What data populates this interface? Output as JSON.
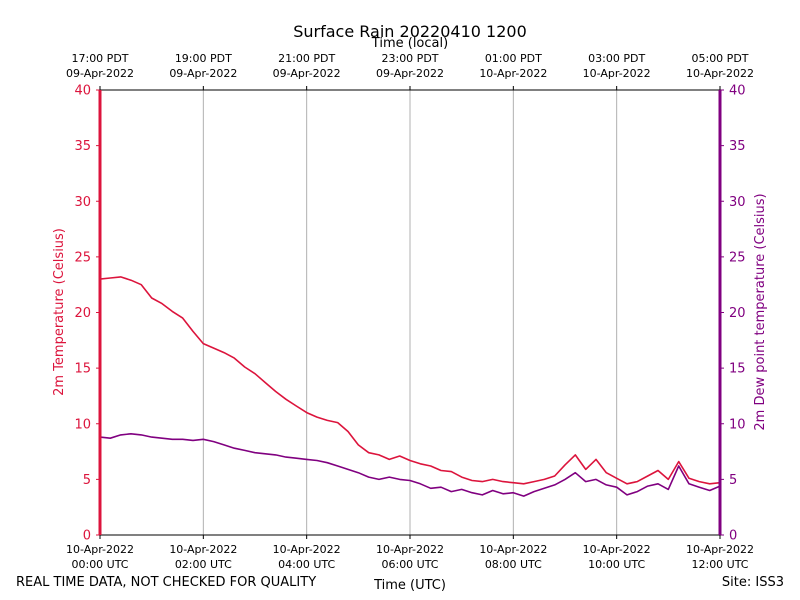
{
  "chart_data": {
    "type": "line",
    "title": "Surface Rain 20220410 1200",
    "top_axis_title": "Time (local)",
    "xlabel": "Time (UTC)",
    "ylabel_left": "2m Temperature (Celsius)",
    "ylabel_right": "2m Dew point temperature (Celsius)",
    "xlim_hours": [
      0,
      12
    ],
    "ylim": [
      0,
      40
    ],
    "yticks": [
      0,
      5,
      10,
      15,
      20,
      25,
      30,
      35,
      40
    ],
    "grid": "vertical",
    "bottom_ticks": [
      {
        "hour": 0,
        "date": "10-Apr-2022",
        "time": "00:00 UTC"
      },
      {
        "hour": 2,
        "date": "10-Apr-2022",
        "time": "02:00 UTC"
      },
      {
        "hour": 4,
        "date": "10-Apr-2022",
        "time": "04:00 UTC"
      },
      {
        "hour": 6,
        "date": "10-Apr-2022",
        "time": "06:00 UTC"
      },
      {
        "hour": 8,
        "date": "10-Apr-2022",
        "time": "08:00 UTC"
      },
      {
        "hour": 10,
        "date": "10-Apr-2022",
        "time": "10:00 UTC"
      },
      {
        "hour": 12,
        "date": "10-Apr-2022",
        "time": "12:00 UTC"
      }
    ],
    "top_ticks": [
      {
        "hour": 0,
        "time": "17:00 PDT",
        "date": "09-Apr-2022"
      },
      {
        "hour": 2,
        "time": "19:00 PDT",
        "date": "09-Apr-2022"
      },
      {
        "hour": 4,
        "time": "21:00 PDT",
        "date": "09-Apr-2022"
      },
      {
        "hour": 6,
        "time": "23:00 PDT",
        "date": "09-Apr-2022"
      },
      {
        "hour": 8,
        "time": "01:00 PDT",
        "date": "10-Apr-2022"
      },
      {
        "hour": 10,
        "time": "03:00 PDT",
        "date": "10-Apr-2022"
      },
      {
        "hour": 12,
        "time": "05:00 PDT",
        "date": "10-Apr-2022"
      }
    ],
    "series": [
      {
        "name": "2m Temperature",
        "axis": "left",
        "color": "#dc143c",
        "x": [
          0,
          0.2,
          0.4,
          0.6,
          0.8,
          1.0,
          1.2,
          1.4,
          1.6,
          1.8,
          2.0,
          2.2,
          2.4,
          2.6,
          2.8,
          3.0,
          3.2,
          3.4,
          3.6,
          3.8,
          4.0,
          4.2,
          4.4,
          4.6,
          4.8,
          5.0,
          5.2,
          5.4,
          5.6,
          5.8,
          6.0,
          6.2,
          6.4,
          6.6,
          6.8,
          7.0,
          7.2,
          7.4,
          7.6,
          7.8,
          8.0,
          8.2,
          8.4,
          8.6,
          8.8,
          9.0,
          9.2,
          9.4,
          9.6,
          9.8,
          10.0,
          10.2,
          10.4,
          10.6,
          10.8,
          11.0,
          11.2,
          11.4,
          11.6,
          11.8,
          12.0
        ],
        "values": [
          23.0,
          23.1,
          23.2,
          22.9,
          22.5,
          21.3,
          20.8,
          20.1,
          19.5,
          18.3,
          17.2,
          16.8,
          16.4,
          15.9,
          15.1,
          14.5,
          13.7,
          12.9,
          12.2,
          11.6,
          11.0,
          10.6,
          10.3,
          10.1,
          9.3,
          8.1,
          7.4,
          7.2,
          6.8,
          7.1,
          6.7,
          6.4,
          6.2,
          5.8,
          5.7,
          5.2,
          4.9,
          4.8,
          5.0,
          4.8,
          4.7,
          4.6,
          4.8,
          5.0,
          5.3,
          6.3,
          7.2,
          5.9,
          6.8,
          5.6,
          5.1,
          4.6,
          4.8,
          5.3,
          5.8,
          5.0,
          6.6,
          5.1,
          4.8,
          4.6,
          4.7
        ]
      },
      {
        "name": "2m Dew point temperature",
        "axis": "right",
        "color": "#800080",
        "x": [
          0,
          0.2,
          0.4,
          0.6,
          0.8,
          1.0,
          1.2,
          1.4,
          1.6,
          1.8,
          2.0,
          2.2,
          2.4,
          2.6,
          2.8,
          3.0,
          3.2,
          3.4,
          3.6,
          3.8,
          4.0,
          4.2,
          4.4,
          4.6,
          4.8,
          5.0,
          5.2,
          5.4,
          5.6,
          5.8,
          6.0,
          6.2,
          6.4,
          6.6,
          6.8,
          7.0,
          7.2,
          7.4,
          7.6,
          7.8,
          8.0,
          8.2,
          8.4,
          8.6,
          8.8,
          9.0,
          9.2,
          9.4,
          9.6,
          9.8,
          10.0,
          10.2,
          10.4,
          10.6,
          10.8,
          11.0,
          11.2,
          11.4,
          11.6,
          11.8,
          12.0
        ],
        "values": [
          8.8,
          8.7,
          9.0,
          9.1,
          9.0,
          8.8,
          8.7,
          8.6,
          8.6,
          8.5,
          8.6,
          8.4,
          8.1,
          7.8,
          7.6,
          7.4,
          7.3,
          7.2,
          7.0,
          6.9,
          6.8,
          6.7,
          6.5,
          6.2,
          5.9,
          5.6,
          5.2,
          5.0,
          5.2,
          5.0,
          4.9,
          4.6,
          4.2,
          4.3,
          3.9,
          4.1,
          3.8,
          3.6,
          4.0,
          3.7,
          3.8,
          3.5,
          3.9,
          4.2,
          4.5,
          5.0,
          5.6,
          4.8,
          5.0,
          4.5,
          4.3,
          3.6,
          3.9,
          4.4,
          4.6,
          4.1,
          6.2,
          4.6,
          4.3,
          4.0,
          4.4
        ]
      }
    ]
  },
  "footer": {
    "left_text": "REAL TIME DATA, NOT CHECKED FOR QUALITY",
    "right_text": "Site: ISS3"
  }
}
